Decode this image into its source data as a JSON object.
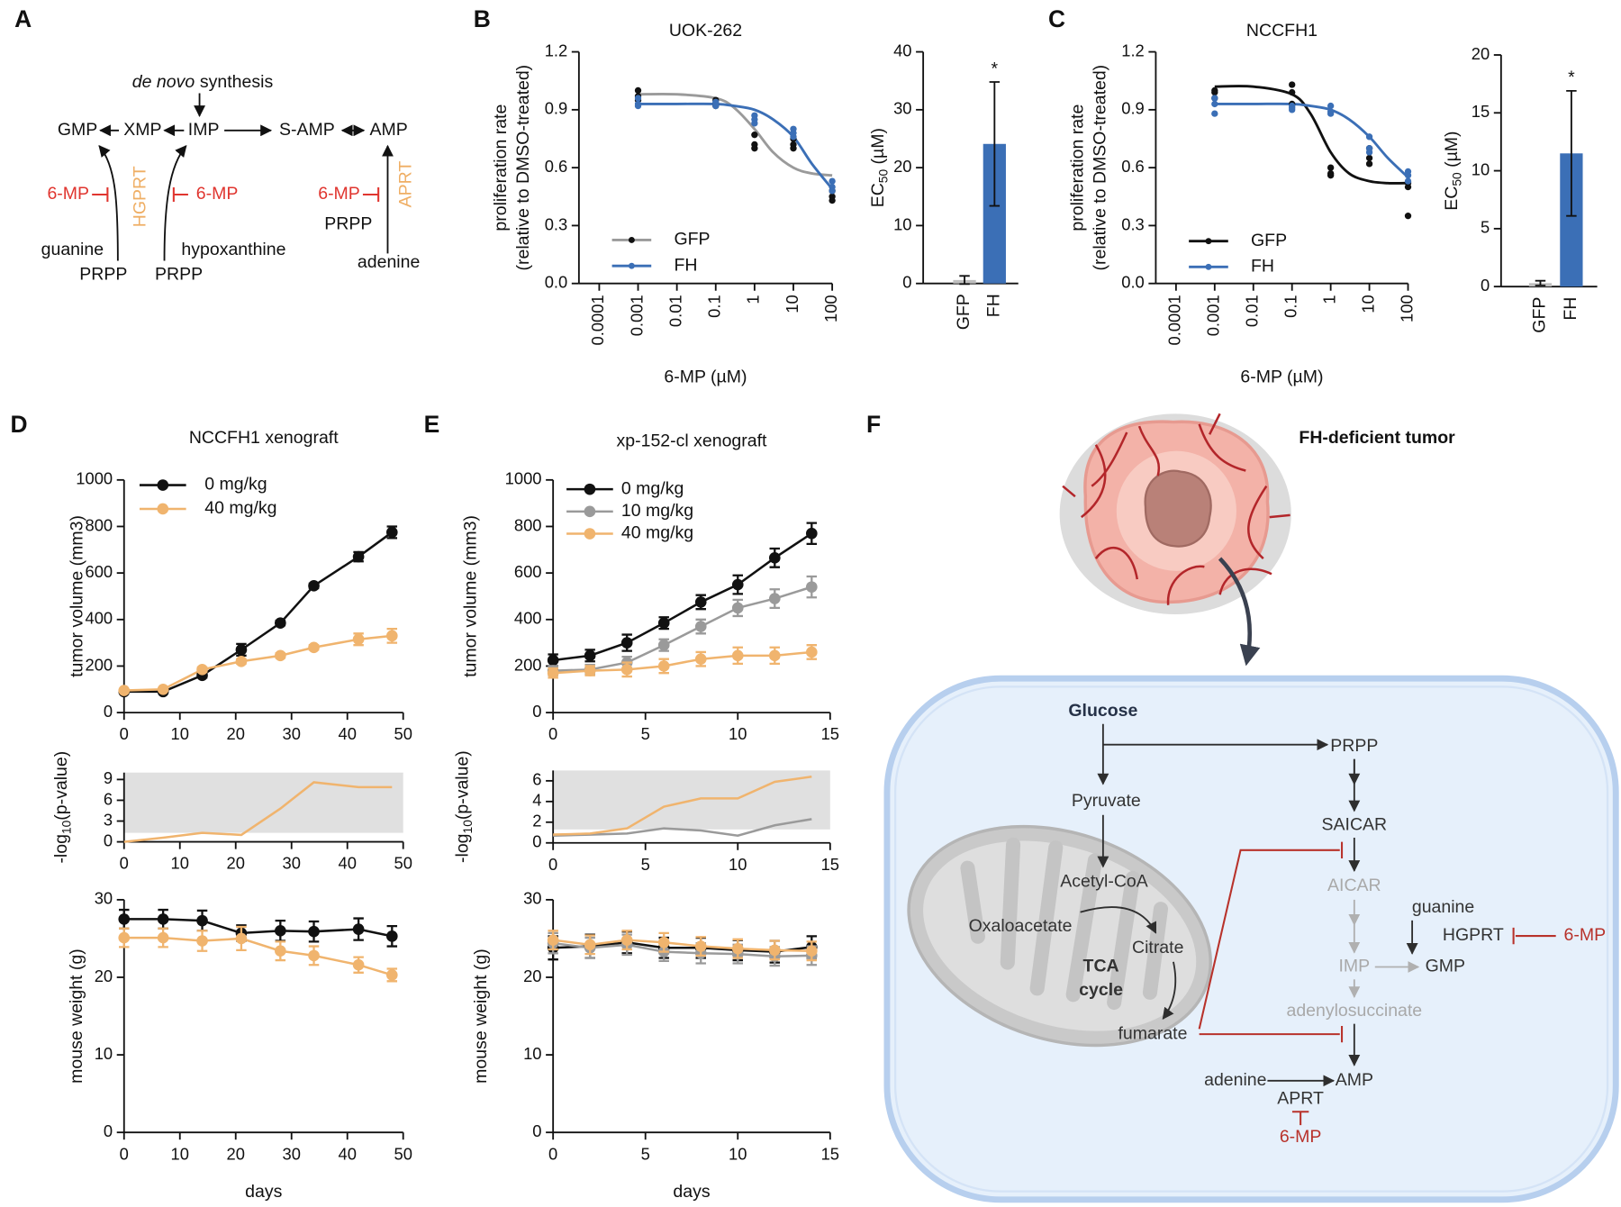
{
  "panel_labels": [
    "A",
    "B",
    "C",
    "D",
    "E",
    "F"
  ],
  "diagram_a": {
    "de_novo": "de novo",
    "synthesis": "synthesis",
    "nodes": [
      "GMP",
      "XMP",
      "IMP",
      "S-AMP",
      "AMP"
    ],
    "inhibitors": [
      "6-MP",
      "6-MP",
      "6-MP"
    ],
    "enzymes": [
      "HGPRT",
      "APRT"
    ],
    "substrates": [
      "guanine",
      "hypoxanthine",
      "adenine"
    ],
    "cosubstrates": [
      "PRPP",
      "PRPP",
      "PRPP"
    ]
  },
  "diagram_f": {
    "title": "FH-deficient tumor",
    "labels": [
      "Glucose",
      "PRPP",
      "Pyruvate",
      "SAICAR",
      "Acetyl-CoA",
      "AICAR",
      "guanine",
      "Oxaloacetate",
      "Citrate",
      "HGPRT",
      "6-MP",
      "TCA",
      "cycle",
      "IMP",
      "GMP",
      "adenylosuccinate",
      "fumarate",
      "adenine",
      "AMP",
      "APRT",
      "6-MP"
    ]
  },
  "chart_data": [
    {
      "type": "scatter",
      "title": "UOK-262",
      "xlabel": "6-MP (µM)",
      "ylabel": [
        "proliferation rate",
        "(relative to DMSO-treated)"
      ],
      "xscale": "log",
      "xlim": [
        3e-05,
        100
      ],
      "xticks": [
        0.0001,
        0.001,
        0.01,
        0.1,
        1,
        10,
        100
      ],
      "ylim": [
        0,
        1.2
      ],
      "yticks": [
        {
          "value": 0,
          "label": "0.0"
        },
        0.3,
        0.6,
        0.9,
        1.2
      ],
      "legend": "lower left",
      "series": [
        {
          "name": "GFP",
          "color": "#9a9a9a",
          "point_color": "#111111",
          "x": [
            0.001,
            0.001,
            0.001,
            0.1,
            0.1,
            0.1,
            1,
            1,
            1,
            10,
            10,
            10,
            100,
            100,
            100
          ],
          "values": [
            1.0,
            0.97,
            0.95,
            0.95,
            0.93,
            0.92,
            0.77,
            0.72,
            0.7,
            0.75,
            0.72,
            0.7,
            0.48,
            0.45,
            0.43
          ],
          "fit_x": [
            0.001,
            0.01,
            0.1,
            0.3,
            1,
            3,
            10,
            30,
            100
          ],
          "fit_values": [
            0.98,
            0.98,
            0.96,
            0.91,
            0.8,
            0.68,
            0.6,
            0.57,
            0.56
          ]
        },
        {
          "name": "FH",
          "color": "#3b6fb6",
          "point_color": "#3b6fb6",
          "x": [
            0.001,
            0.001,
            0.001,
            0.1,
            0.1,
            0.1,
            1,
            1,
            1,
            10,
            10,
            10,
            100,
            100,
            100
          ],
          "values": [
            0.96,
            0.93,
            0.92,
            0.94,
            0.93,
            0.92,
            0.87,
            0.85,
            0.83,
            0.8,
            0.78,
            0.76,
            0.53,
            0.5,
            0.48
          ],
          "fit_x": [
            0.001,
            0.01,
            0.1,
            0.3,
            1,
            3,
            10,
            30,
            100
          ],
          "fit_values": [
            0.93,
            0.93,
            0.93,
            0.92,
            0.9,
            0.85,
            0.76,
            0.62,
            0.49
          ]
        }
      ]
    },
    {
      "type": "bar",
      "ylabel": {
        "main": "EC",
        "sub": "50",
        "rest": " (µM)"
      },
      "categories": [
        "GFP",
        "FH"
      ],
      "values": [
        0.6,
        24.1
      ],
      "errors": [
        0.7,
        10.7
      ],
      "colors": [
        "#bfbfbf",
        "#3b6fb6"
      ],
      "ylim": [
        0,
        40
      ],
      "yticks": [
        0,
        10,
        20,
        30,
        40
      ],
      "annotations": [
        {
          "text": "*",
          "x": "FH"
        }
      ]
    },
    {
      "type": "scatter",
      "title": "NCCFH1",
      "xlabel": "6-MP (µM)",
      "ylabel": [
        "proliferation rate",
        "(relative to DMSO-treated)"
      ],
      "xscale": "log",
      "xlim": [
        3e-05,
        100
      ],
      "xticks": [
        0.0001,
        0.001,
        0.01,
        0.1,
        1,
        10,
        100
      ],
      "ylim": [
        0,
        1.2
      ],
      "yticks": [
        {
          "value": 0,
          "label": "0.0"
        },
        0.3,
        0.6,
        0.9,
        1.2
      ],
      "legend": "lower left",
      "series": [
        {
          "name": "GFP",
          "color": "#111111",
          "point_color": "#111111",
          "x": [
            0.001,
            0.001,
            0.001,
            0.1,
            0.1,
            0.1,
            1,
            1,
            1,
            10,
            10,
            10,
            100,
            100,
            100
          ],
          "values": [
            1.0,
            0.99,
            0.96,
            1.03,
            0.99,
            0.93,
            0.6,
            0.57,
            0.56,
            0.7,
            0.65,
            0.62,
            0.52,
            0.5,
            0.35
          ],
          "fit_x": [
            0.001,
            0.01,
            0.1,
            0.3,
            1,
            3,
            10,
            30,
            100
          ],
          "fit_values": [
            1.02,
            1.02,
            0.98,
            0.88,
            0.68,
            0.57,
            0.53,
            0.52,
            0.52
          ]
        },
        {
          "name": "FH",
          "color": "#3b6fb6",
          "point_color": "#3b6fb6",
          "x": [
            0.001,
            0.001,
            0.001,
            0.1,
            0.1,
            0.1,
            1,
            1,
            1,
            10,
            10,
            10,
            100,
            100,
            100
          ],
          "values": [
            0.96,
            0.93,
            0.88,
            0.92,
            0.91,
            0.9,
            0.92,
            0.89,
            0.88,
            0.76,
            0.7,
            0.68,
            0.58,
            0.56,
            0.53
          ],
          "fit_x": [
            0.001,
            0.01,
            0.1,
            0.3,
            1,
            3,
            10,
            30,
            100
          ],
          "fit_values": [
            0.93,
            0.93,
            0.93,
            0.92,
            0.9,
            0.85,
            0.76,
            0.65,
            0.55
          ]
        }
      ]
    },
    {
      "type": "bar",
      "ylabel": {
        "main": "EC",
        "sub": "50",
        "rest": " (µM)"
      },
      "categories": [
        "GFP",
        "FH"
      ],
      "values": [
        0.3,
        11.5
      ],
      "errors": [
        0.2,
        5.4
      ],
      "colors": [
        "#bfbfbf",
        "#3b6fb6"
      ],
      "ylim": [
        0,
        20
      ],
      "yticks": [
        0,
        5,
        10,
        15,
        20
      ],
      "annotations": [
        {
          "text": "*",
          "x": "FH"
        }
      ]
    },
    {
      "type": "line",
      "title": "NCCFH1 xenograft",
      "ylabel": "tumor volume (mm3)",
      "markers": true,
      "legend": "upper left",
      "x": [
        0,
        7,
        14,
        21,
        28,
        34,
        42,
        48
      ],
      "xlim": [
        0,
        50
      ],
      "xticks": [
        0,
        10,
        20,
        30,
        40,
        50
      ],
      "ylim": [
        0,
        1000
      ],
      "yticks": [
        0,
        200,
        400,
        600,
        800,
        1000
      ],
      "series": [
        {
          "name": "0 mg/kg",
          "color": "#111111",
          "values": [
            90,
            90,
            160,
            270,
            385,
            545,
            670,
            775
          ],
          "errors": [
            5,
            5,
            10,
            25,
            10,
            10,
            20,
            25
          ]
        },
        {
          "name": "40 mg/kg",
          "color": "#f0b46e",
          "values": [
            95,
            100,
            185,
            220,
            245,
            280,
            315,
            330
          ],
          "errors": [
            5,
            5,
            10,
            10,
            10,
            10,
            25,
            30
          ]
        }
      ]
    },
    {
      "type": "line",
      "ylabel": {
        "main": "-log",
        "sub": "10",
        "rest": "(p-value)"
      },
      "markers": false,
      "x": [
        0,
        7,
        14,
        21,
        28,
        34,
        42,
        48
      ],
      "xlim": [
        0,
        50
      ],
      "xticks": [
        0,
        10,
        20,
        30,
        40,
        50
      ],
      "ylim": [
        0,
        10
      ],
      "yticks": [
        0,
        3,
        6,
        9
      ],
      "shade_range": [
        1.3,
        10
      ],
      "shade_color": "#e0e0e0",
      "series": [
        {
          "color": "#f0b46e",
          "values": [
            0,
            0.6,
            1.3,
            1.0,
            4.8,
            8.6,
            7.9,
            7.9
          ]
        }
      ]
    },
    {
      "type": "line",
      "xlabel": "days",
      "ylabel": "mouse weight (g)",
      "markers": true,
      "x": [
        0,
        7,
        14,
        21,
        28,
        34,
        42,
        48
      ],
      "xlim": [
        0,
        50
      ],
      "xticks": [
        0,
        10,
        20,
        30,
        40,
        50
      ],
      "ylim": [
        0,
        30
      ],
      "yticks": [
        0,
        10,
        20,
        30
      ],
      "series": [
        {
          "color": "#111111",
          "values": [
            27.5,
            27.5,
            27.3,
            25.7,
            26.0,
            25.9,
            26.2,
            25.3
          ],
          "errors": [
            1.2,
            1.2,
            1.3,
            1.0,
            1.3,
            1.3,
            1.4,
            1.3
          ]
        },
        {
          "color": "#f0b46e",
          "values": [
            25.1,
            25.1,
            24.7,
            25.0,
            23.4,
            22.8,
            21.6,
            20.3
          ],
          "errors": [
            1.2,
            1.2,
            1.3,
            1.5,
            1.2,
            1.2,
            1.0,
            0.8
          ]
        }
      ]
    },
    {
      "type": "line",
      "title": "xp-152-cl xenograft",
      "ylabel": "tumor volume (mm3)",
      "markers": true,
      "legend": "upper left",
      "x": [
        0,
        2,
        4,
        6,
        8,
        10,
        12,
        14
      ],
      "xlim": [
        0,
        15
      ],
      "xticks": [
        0,
        5,
        10,
        15
      ],
      "ylim": [
        0,
        1000
      ],
      "yticks": [
        0,
        200,
        400,
        600,
        800,
        1000
      ],
      "series": [
        {
          "name": "0 mg/kg",
          "color": "#111111",
          "values": [
            225,
            245,
            300,
            385,
            475,
            550,
            665,
            770
          ],
          "errors": [
            25,
            25,
            35,
            25,
            30,
            40,
            40,
            45
          ]
        },
        {
          "name": "10 mg/kg",
          "color": "#9a9a9a",
          "values": [
            180,
            185,
            215,
            290,
            370,
            450,
            490,
            540
          ],
          "errors": [
            20,
            20,
            25,
            25,
            30,
            35,
            40,
            45
          ]
        },
        {
          "name": "40 mg/kg",
          "color": "#f0b46e",
          "values": [
            170,
            180,
            185,
            200,
            230,
            245,
            245,
            260
          ],
          "errors": [
            20,
            20,
            30,
            30,
            30,
            35,
            35,
            30
          ]
        }
      ]
    },
    {
      "type": "line",
      "ylabel": {
        "main": "-log",
        "sub": "10",
        "rest": "(p-value)"
      },
      "markers": false,
      "x": [
        0,
        2,
        4,
        6,
        8,
        10,
        12,
        14
      ],
      "xlim": [
        0,
        15
      ],
      "xticks": [
        0,
        5,
        10,
        15
      ],
      "ylim": [
        0,
        7
      ],
      "yticks": [
        0,
        2,
        4,
        6
      ],
      "shade_range": [
        1.3,
        7
      ],
      "shade_color": "#e0e0e0",
      "series": [
        {
          "color": "#9a9a9a",
          "values": [
            0.7,
            0.8,
            0.9,
            1.4,
            1.2,
            0.7,
            1.7,
            2.3
          ]
        },
        {
          "color": "#f0b46e",
          "values": [
            0.8,
            0.9,
            1.4,
            3.5,
            4.3,
            4.3,
            5.9,
            6.4
          ]
        }
      ]
    },
    {
      "type": "line",
      "xlabel": "days",
      "ylabel": "mouse weight (g)",
      "markers": true,
      "x": [
        0,
        2,
        4,
        6,
        8,
        10,
        12,
        14
      ],
      "xlim": [
        0,
        15
      ],
      "xticks": [
        0,
        5,
        10,
        15
      ],
      "ylim": [
        0,
        30
      ],
      "yticks": [
        0,
        10,
        20,
        30
      ],
      "series": [
        {
          "color": "#111111",
          "values": [
            23.8,
            24.0,
            24.5,
            23.8,
            23.8,
            23.5,
            23.3,
            23.9
          ],
          "errors": [
            1.5,
            1.5,
            1.4,
            1.3,
            1.3,
            1.3,
            1.4,
            1.4
          ]
        },
        {
          "color": "#9a9a9a",
          "values": [
            24.4,
            23.8,
            24.2,
            23.3,
            23.1,
            23.0,
            22.7,
            22.8
          ],
          "errors": [
            1.3,
            1.3,
            1.3,
            1.2,
            1.3,
            1.2,
            1.2,
            1.2
          ]
        },
        {
          "color": "#f0b46e",
          "values": [
            24.8,
            24.2,
            24.8,
            24.5,
            24.0,
            23.7,
            23.5,
            23.4
          ],
          "errors": [
            1.2,
            1.2,
            1.2,
            1.2,
            1.2,
            1.2,
            1.2,
            1.2
          ]
        }
      ]
    }
  ]
}
